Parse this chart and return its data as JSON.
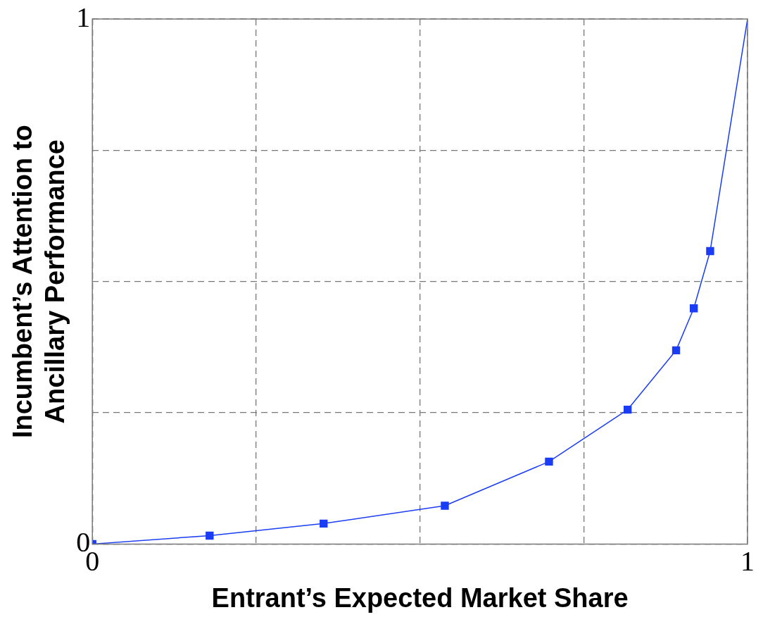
{
  "chart_data": {
    "type": "line",
    "xlabel": "Entrant’s Expected Market Share",
    "ylabel": "Incumbent’s Attention to\nAncillary Performance",
    "xlim": [
      0,
      1
    ],
    "ylim": [
      0,
      1
    ],
    "xticks": [
      0,
      {
        "value": 0.25,
        "label": null
      },
      {
        "value": 0.5,
        "label": null
      },
      {
        "value": 0.75,
        "label": null
      },
      1
    ],
    "yticks": [
      0,
      {
        "value": 0.25,
        "label": null
      },
      {
        "value": 0.5,
        "label": null
      },
      {
        "value": 0.75,
        "label": null
      },
      1
    ],
    "grid": true,
    "legend": false,
    "line_style": "solid",
    "series": [
      {
        "color": "#1a3cf5",
        "marker": "square",
        "x": [
          0,
          0.179,
          0.353,
          0.538,
          0.697,
          0.817,
          0.891,
          0.918,
          0.943
        ],
        "values": [
          0,
          0.016,
          0.039,
          0.073,
          0.157,
          0.256,
          0.369,
          0.449,
          0.558
        ]
      },
      {
        "color": "#1a3cf5",
        "marker": "none",
        "x": [
          0.943,
          1
        ],
        "values": [
          0.558,
          1
        ]
      }
    ]
  }
}
